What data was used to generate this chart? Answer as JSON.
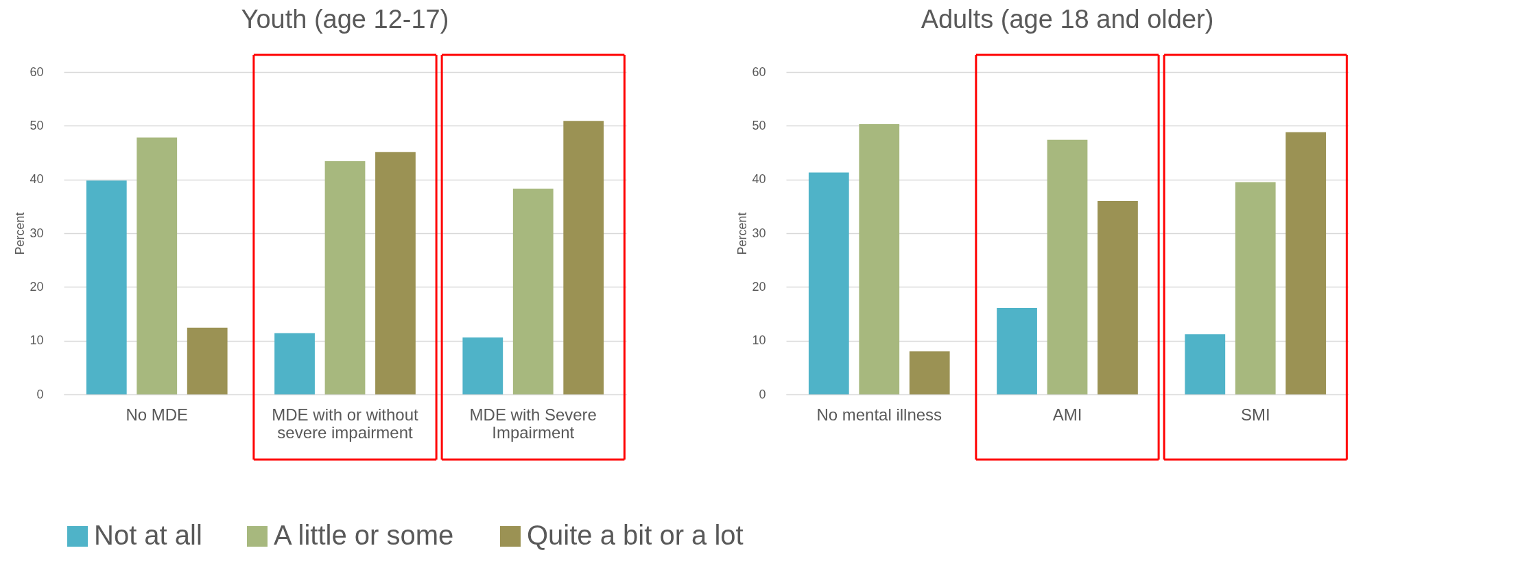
{
  "chart_data": [
    {
      "type": "bar",
      "title": "Youth (age 12-17)",
      "ylabel": "Percent",
      "categories": [
        "No MDE",
        "MDE with or without severe impairment",
        "MDE with Severe Impairment"
      ],
      "series": [
        {
          "name": "Not at all",
          "color": "#4fb3c8",
          "values": [
            39.8,
            11.4,
            10.6
          ]
        },
        {
          "name": "A little or some",
          "color": "#a7b87e",
          "values": [
            47.8,
            43.4,
            38.3
          ]
        },
        {
          "name": "Quite a bit or a lot",
          "color": "#9b9254",
          "values": [
            12.4,
            45.1,
            50.9
          ]
        }
      ],
      "ylim": [
        0,
        60
      ],
      "yticks": [
        0,
        10,
        20,
        30,
        40,
        50,
        60
      ],
      "grid": "y",
      "legend": "bottom"
    },
    {
      "type": "bar",
      "title": "Adults (age 18 and older)",
      "ylabel": "Percent",
      "categories": [
        "No mental illness",
        "AMI",
        "SMI"
      ],
      "series": [
        {
          "name": "Not at all",
          "color": "#4fb3c8",
          "values": [
            41.3,
            16.1,
            11.2
          ]
        },
        {
          "name": "A little or some",
          "color": "#a7b87e",
          "values": [
            50.3,
            47.4,
            39.5
          ]
        },
        {
          "name": "Quite a bit or a lot",
          "color": "#9b9254",
          "values": [
            8.0,
            36.0,
            48.8
          ]
        }
      ],
      "ylim": [
        0,
        60
      ],
      "yticks": [
        0,
        10,
        20,
        30,
        40,
        50,
        60
      ],
      "grid": "y",
      "legend": "bottom"
    }
  ]
}
